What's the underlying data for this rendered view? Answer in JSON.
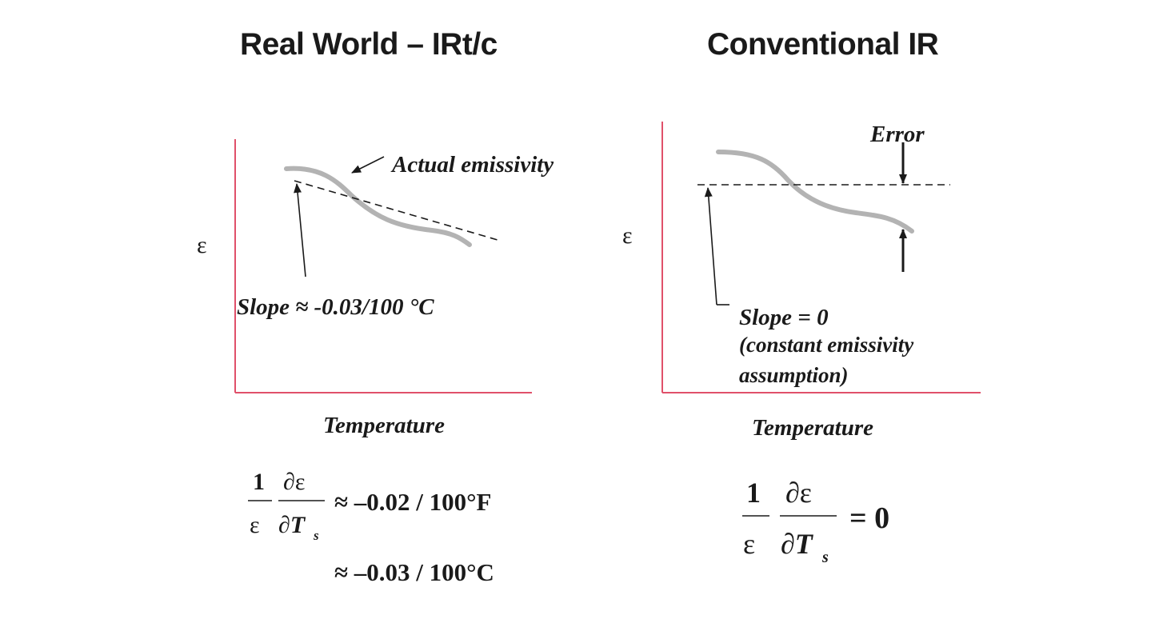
{
  "titles": {
    "left": "Real World – IRt/c",
    "right": "Conventional IR"
  },
  "left_panel": {
    "y_axis_label": "ε",
    "x_axis_label": "Temperature",
    "curve_label": "Actual emissivity",
    "slope_label": "Slope ≈ -0.03/100 °C",
    "formula": {
      "numerator_one": "1",
      "denominator_eps": "ε",
      "numerator_partial": "∂ε",
      "denominator_partial": "∂T",
      "denominator_sub": "s",
      "line1_rhs": "≈ –0.02 / 100°F",
      "line2_rhs": "≈ –0.03 / 100°C"
    }
  },
  "right_panel": {
    "y_axis_label": "ε",
    "x_axis_label": "Temperature",
    "error_label": "Error",
    "slope_label": "Slope = 0",
    "note_line1": "(constant emissivity",
    "note_line2": "assumption)",
    "formula": {
      "numerator_one": "1",
      "denominator_eps": "ε",
      "numerator_partial": "∂ε",
      "denominator_partial": "∂T",
      "denominator_sub": "s",
      "rhs": "= 0"
    }
  },
  "colors": {
    "axis": "#e0506a",
    "curve": "#b3b3b3",
    "text": "#1a1a1a"
  }
}
